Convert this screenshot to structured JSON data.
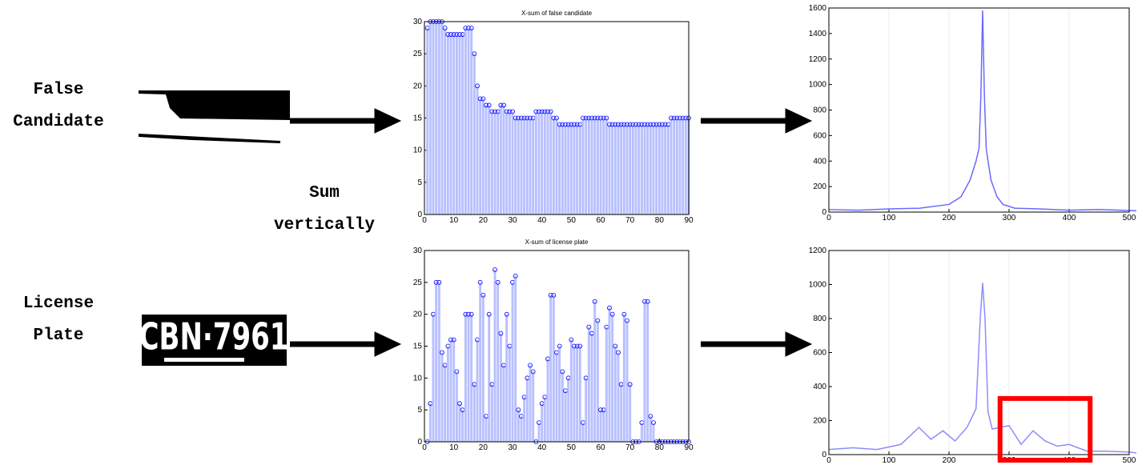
{
  "labels": {
    "false_candidate": [
      "False",
      "Candidate"
    ],
    "license_plate": [
      "License",
      "Plate"
    ],
    "sum_vertically": [
      "Sum",
      "vertically"
    ],
    "plate_text": "CBN·7961"
  },
  "chart_data": [
    {
      "type": "stem",
      "title": "X-sum of false candidate",
      "color": "#0000ff",
      "bar_color": "#b8c0ff",
      "grid": false,
      "xlim": [
        0,
        90
      ],
      "xticks": [
        0,
        10,
        20,
        30,
        40,
        50,
        60,
        70,
        80,
        90
      ],
      "ylim": [
        0,
        30
      ],
      "yticks": [
        0,
        5,
        10,
        15,
        20,
        25,
        30
      ],
      "x": [
        1,
        2,
        3,
        4,
        5,
        6,
        7,
        8,
        9,
        10,
        11,
        12,
        13,
        14,
        15,
        16,
        17,
        18,
        19,
        20,
        21,
        22,
        23,
        24,
        25,
        26,
        27,
        28,
        29,
        30,
        31,
        32,
        33,
        34,
        35,
        36,
        37,
        38,
        39,
        40,
        41,
        42,
        43,
        44,
        45,
        46,
        47,
        48,
        49,
        50,
        51,
        52,
        53,
        54,
        55,
        56,
        57,
        58,
        59,
        60,
        61,
        62,
        63,
        64,
        65,
        66,
        67,
        68,
        69,
        70,
        71,
        72,
        73,
        74,
        75,
        76,
        77,
        78,
        79,
        80,
        81,
        82,
        83,
        84,
        85,
        86,
        87,
        88,
        89,
        90
      ],
      "values": [
        29,
        30,
        30,
        30,
        30,
        30,
        29,
        28,
        28,
        28,
        28,
        28,
        28,
        29,
        29,
        29,
        25,
        20,
        18,
        18,
        17,
        17,
        16,
        16,
        16,
        17,
        17,
        16,
        16,
        16,
        15,
        15,
        15,
        15,
        15,
        15,
        15,
        16,
        16,
        16,
        16,
        16,
        16,
        15,
        15,
        14,
        14,
        14,
        14,
        14,
        14,
        14,
        14,
        15,
        15,
        15,
        15,
        15,
        15,
        15,
        15,
        15,
        14,
        14,
        14,
        14,
        14,
        14,
        14,
        14,
        14,
        14,
        14,
        14,
        14,
        14,
        14,
        14,
        14,
        14,
        14,
        14,
        14,
        15,
        15,
        15,
        15,
        15,
        15,
        15
      ]
    },
    {
      "type": "stem",
      "title": "X-sum of license plate",
      "color": "#0000ff",
      "bar_color": "#b8c0ff",
      "grid": false,
      "xlim": [
        0,
        90
      ],
      "xticks": [
        0,
        10,
        20,
        30,
        40,
        50,
        60,
        70,
        80,
        90
      ],
      "ylim": [
        0,
        30
      ],
      "yticks": [
        0,
        5,
        10,
        15,
        20,
        25,
        30
      ],
      "x": [
        1,
        2,
        3,
        4,
        5,
        6,
        7,
        8,
        9,
        10,
        11,
        12,
        13,
        14,
        15,
        16,
        17,
        18,
        19,
        20,
        21,
        22,
        23,
        24,
        25,
        26,
        27,
        28,
        29,
        30,
        31,
        32,
        33,
        34,
        35,
        36,
        37,
        38,
        39,
        40,
        41,
        42,
        43,
        44,
        45,
        46,
        47,
        48,
        49,
        50,
        51,
        52,
        53,
        54,
        55,
        56,
        57,
        58,
        59,
        60,
        61,
        62,
        63,
        64,
        65,
        66,
        67,
        68,
        69,
        70,
        71,
        72,
        73,
        74,
        75,
        76,
        77,
        78,
        79,
        80,
        81,
        82,
        83,
        84,
        85,
        86,
        87,
        88,
        89,
        90
      ],
      "values": [
        0,
        6,
        20,
        25,
        25,
        14,
        12,
        15,
        16,
        16,
        11,
        6,
        5,
        20,
        20,
        20,
        9,
        16,
        25,
        23,
        4,
        20,
        9,
        27,
        25,
        17,
        12,
        20,
        15,
        25,
        26,
        5,
        4,
        7,
        10,
        12,
        11,
        0,
        3,
        6,
        7,
        13,
        23,
        23,
        14,
        15,
        11,
        8,
        10,
        16,
        15,
        15,
        15,
        3,
        10,
        18,
        17,
        22,
        19,
        5,
        5,
        18,
        21,
        20,
        15,
        14,
        9,
        20,
        19,
        9,
        0,
        0,
        0,
        3,
        22,
        22,
        4,
        3,
        0,
        0,
        0,
        0,
        0,
        0,
        0,
        0,
        0,
        0,
        0,
        0
      ]
    },
    {
      "type": "line",
      "color": "#6a6aff",
      "grid": true,
      "xlim": [
        0,
        500
      ],
      "xticks": [
        0,
        100,
        200,
        300,
        400,
        500
      ],
      "ylim": [
        0,
        1600
      ],
      "yticks": [
        0,
        200,
        400,
        600,
        800,
        1000,
        1200,
        1400,
        1600
      ],
      "x": [
        0,
        50,
        100,
        150,
        200,
        220,
        235,
        245,
        250,
        253,
        256,
        259,
        262,
        265,
        270,
        280,
        290,
        310,
        350,
        400,
        450,
        512
      ],
      "values": [
        20,
        15,
        25,
        30,
        60,
        120,
        250,
        400,
        500,
        900,
        1580,
        900,
        500,
        400,
        250,
        120,
        60,
        30,
        25,
        15,
        20,
        10
      ]
    },
    {
      "type": "line",
      "color": "#8c8cff",
      "grid": true,
      "xlim": [
        0,
        500
      ],
      "xticks": [
        0,
        100,
        200,
        300,
        400,
        500
      ],
      "ylim": [
        0,
        1200
      ],
      "yticks": [
        0,
        200,
        400,
        600,
        800,
        1000,
        1200
      ],
      "x": [
        0,
        40,
        80,
        120,
        150,
        170,
        190,
        210,
        230,
        245,
        252,
        256,
        260,
        265,
        272,
        285,
        300,
        320,
        340,
        360,
        380,
        400,
        430,
        460,
        500,
        512
      ],
      "values": [
        30,
        40,
        30,
        60,
        160,
        90,
        140,
        80,
        160,
        270,
        800,
        1010,
        800,
        250,
        150,
        160,
        170,
        60,
        140,
        80,
        50,
        60,
        20,
        20,
        15,
        10
      ],
      "highlight_box": {
        "xlim": [
          285,
          435
        ],
        "ylim": [
          0,
          330
        ],
        "color": "#ff0000"
      }
    }
  ]
}
